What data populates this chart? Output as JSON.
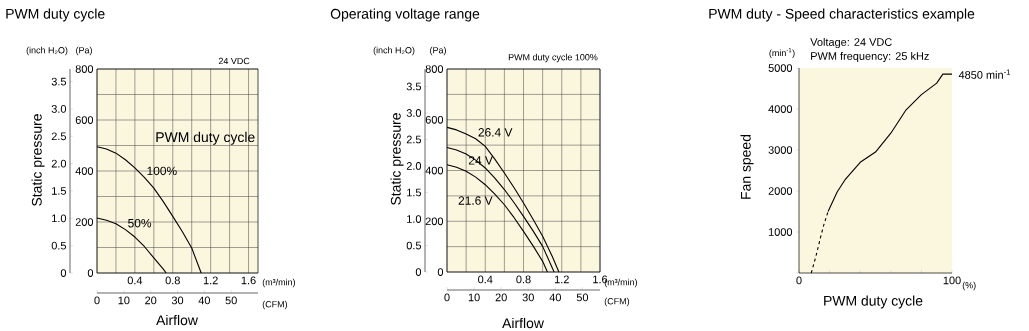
{
  "chart_data": [
    {
      "type": "line",
      "title": "PWM duty cycle",
      "xlabel": "Airflow",
      "ylabel": "Static pressure",
      "y2label": "(Pa)",
      "x2label": "(CFM)",
      "legend_title": "PWM duty cycle",
      "xlim": [
        0,
        1.7
      ],
      "xticks": [
        {
          "value": 0,
          "label": null
        },
        {
          "value": 0.2,
          "label": null
        },
        0.4,
        {
          "value": 0.6,
          "label": null
        },
        0.8,
        {
          "value": 1.0,
          "label": null
        },
        1.2,
        {
          "value": 1.4,
          "label": null
        },
        1.6
      ],
      "y2lim": [
        0,
        800
      ],
      "y2ticks": [
        0,
        {
          "value": 100,
          "label": null
        },
        200,
        {
          "value": 300,
          "label": null
        },
        400,
        {
          "value": 500,
          "label": null
        },
        600,
        {
          "value": 700,
          "label": null
        },
        800
      ],
      "ylim": [
        0,
        3.73
      ],
      "yticks": [
        0,
        0.5,
        {
          "value": 1,
          "label": "1.0"
        },
        1.5,
        {
          "value": 2,
          "label": "2.0"
        },
        2.5,
        {
          "value": 3,
          "label": "3.0"
        },
        3.5
      ],
      "x2lim": [
        0,
        60
      ],
      "x2ticks": [
        0,
        10,
        20,
        30,
        40,
        50
      ],
      "grid": true,
      "annotations": [
        "24 VDC",
        "(inch H₂O)",
        "(m³/min)"
      ],
      "series": [
        {
          "name": "100%",
          "color": "#000000",
          "axis": "y2",
          "x": [
            0,
            0.1,
            0.2,
            0.3,
            0.4,
            0.5,
            0.6,
            0.7,
            0.8,
            0.9,
            1.0,
            1.1
          ],
          "values": [
            495,
            486,
            470,
            444,
            412,
            375,
            333,
            280,
            222,
            163,
            98,
            0
          ]
        },
        {
          "name": "50%",
          "color": "#000000",
          "axis": "y2",
          "x": [
            0,
            0.1,
            0.2,
            0.3,
            0.4,
            0.5,
            0.6,
            0.7,
            0.73
          ],
          "values": [
            216,
            207,
            193,
            170,
            141,
            104,
            59,
            15,
            0
          ]
        }
      ]
    },
    {
      "type": "line",
      "title": "Operating voltage range",
      "xlabel": "Airflow",
      "ylabel": "Static pressure",
      "y2label": "(Pa)",
      "x2label": "(CFM)",
      "xlim": [
        0,
        1.6
      ],
      "xticks": [
        {
          "value": 0,
          "label": null
        },
        {
          "value": 0.2,
          "label": null
        },
        0.4,
        {
          "value": 0.6,
          "label": null
        },
        0.8,
        {
          "value": 1.0,
          "label": null
        },
        1.2,
        {
          "value": 1.4,
          "label": null
        },
        1.6
      ],
      "y2lim": [
        0,
        800
      ],
      "y2ticks": [
        0,
        {
          "value": 100,
          "label": null
        },
        200,
        {
          "value": 300,
          "label": null
        },
        400,
        {
          "value": 500,
          "label": null
        },
        600,
        {
          "value": 700,
          "label": null
        },
        800
      ],
      "ylim": [
        0,
        3.83
      ],
      "yticks": [
        0,
        0.5,
        {
          "value": 1,
          "label": "1.0"
        },
        1.5,
        {
          "value": 2,
          "label": "2.0"
        },
        2.5,
        {
          "value": 3,
          "label": "3.0"
        },
        3.5
      ],
      "x2lim": [
        0,
        56.5
      ],
      "x2ticks": [
        0,
        10,
        20,
        30,
        40,
        50
      ],
      "grid": true,
      "annotations": [
        "PWM duty cycle 100%",
        "(inch H₂O)",
        "(m³/min)"
      ],
      "series": [
        {
          "name": "26.4 V",
          "color": "#000000",
          "axis": "y2",
          "x": [
            0,
            0.1,
            0.2,
            0.3,
            0.4,
            0.5,
            0.6,
            0.7,
            0.8,
            0.9,
            1.0,
            1.1,
            1.17
          ],
          "values": [
            570,
            560,
            544,
            525,
            495,
            445,
            390,
            333,
            272,
            208,
            141,
            62,
            0
          ]
        },
        {
          "name": "24 V",
          "color": "#000000",
          "axis": "y2",
          "x": [
            0,
            0.1,
            0.2,
            0.3,
            0.4,
            0.5,
            0.6,
            0.7,
            0.8,
            0.9,
            1.0,
            1.1,
            1.12
          ],
          "values": [
            491,
            481,
            465,
            441,
            410,
            370,
            325,
            274,
            219,
            162,
            101,
            17,
            0
          ]
        },
        {
          "name": "21.6 V",
          "color": "#000000",
          "axis": "y2",
          "x": [
            0,
            0.1,
            0.2,
            0.3,
            0.4,
            0.5,
            0.6,
            0.7,
            0.8,
            0.9,
            1.0,
            1.05
          ],
          "values": [
            423,
            413,
            397,
            374,
            344,
            307,
            265,
            215,
            160,
            103,
            42,
            0
          ]
        }
      ]
    },
    {
      "type": "line",
      "title": "PWM duty - Speed characteristics example",
      "xlabel": "PWM duty cycle",
      "ylabel": "Fan speed",
      "xlim": [
        0,
        100
      ],
      "xticks": [
        0,
        {
          "value": 20,
          "label": null
        },
        {
          "value": 40,
          "label": null
        },
        {
          "value": 60,
          "label": null
        },
        {
          "value": 80,
          "label": null
        },
        100
      ],
      "ylim": [
        0,
        5000
      ],
      "yticks": [
        {
          "value": 0,
          "label": null
        },
        1000,
        2000,
        3000,
        4000,
        5000
      ],
      "annotations": [
        "Voltage: 24 VDC",
        "PWM frequency: 25 kHz",
        "(min$^{-1}$)",
        "(%)",
        {
          "text": "4850 min$^{-1}$",
          "x": 100,
          "y": 4850
        }
      ],
      "series": [
        {
          "color": "#000000",
          "line_style": "dashed",
          "x": [
            8,
            11,
            13.6,
            16,
            19
          ],
          "values": [
            0,
            400,
            800,
            1150,
            1500
          ]
        },
        {
          "color": "#000000",
          "line_style": "solid",
          "x": [
            19,
            25,
            30,
            40,
            50,
            60,
            70,
            80,
            90,
            94,
            100
          ],
          "values": [
            1500,
            1980,
            2270,
            2700,
            2950,
            3410,
            3980,
            4350,
            4630,
            4850,
            4850
          ]
        }
      ]
    }
  ]
}
